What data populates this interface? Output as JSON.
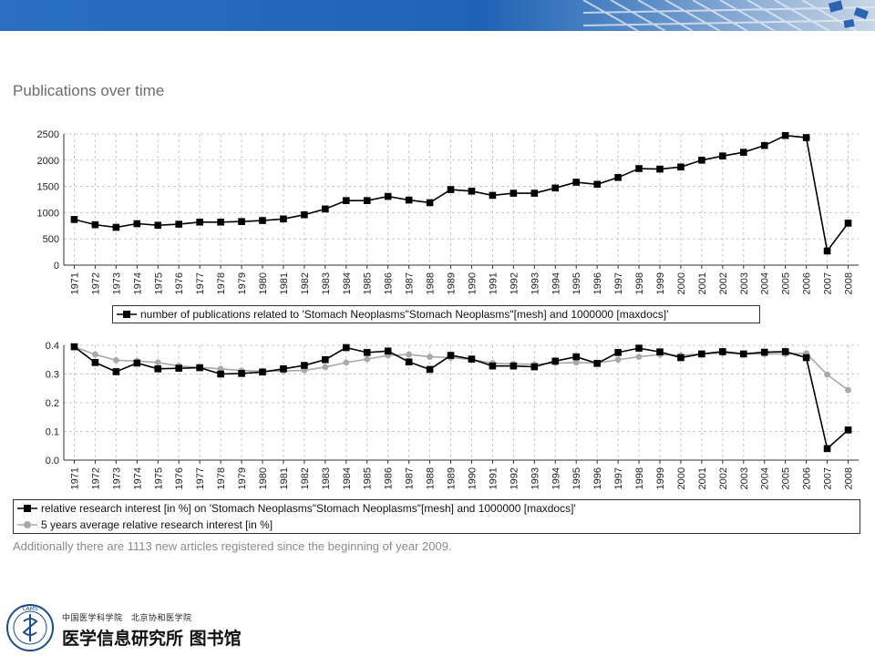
{
  "page": {
    "title": "Publications over time",
    "note": "Additionally there are 1113 new articles registered since the beginning of year 2009.",
    "footer_org": "中国医学科学院　北京协和医学院",
    "footer_name": "医学信息研究所 图书馆",
    "logo_text": "CAMS"
  },
  "colors": {
    "banner": "#1f63b5",
    "series_black": "#000000",
    "series_gray": "#a9a9a9",
    "grid": "#c8c8c8"
  },
  "chart_data": [
    {
      "type": "line",
      "x": [
        "1971",
        "1972",
        "1973",
        "1974",
        "1975",
        "1976",
        "1977",
        "1978",
        "1979",
        "1980",
        "1981",
        "1982",
        "1983",
        "1984",
        "1985",
        "1986",
        "1987",
        "1988",
        "1989",
        "1990",
        "1991",
        "1992",
        "1993",
        "1994",
        "1995",
        "1996",
        "1997",
        "1998",
        "1999",
        "2000",
        "2001",
        "2002",
        "2003",
        "2004",
        "2005",
        "2006",
        "2007",
        "2008"
      ],
      "ylim": [
        0,
        2500
      ],
      "yticks": [
        "0",
        "500",
        "1000",
        "1500",
        "2000",
        "2500"
      ],
      "grid": true,
      "legend_position": "bottom",
      "series": [
        {
          "name": "number of publications related to 'Stomach Neoplasms\"Stomach Neoplasms\"[mesh]  and 1000000 [maxdocs]'",
          "marker": "square",
          "values": [
            870,
            770,
            720,
            790,
            760,
            780,
            820,
            820,
            830,
            850,
            880,
            960,
            1070,
            1230,
            1230,
            1310,
            1240,
            1190,
            1440,
            1410,
            1330,
            1370,
            1370,
            1470,
            1580,
            1540,
            1670,
            1840,
            1830,
            1870,
            2000,
            2080,
            2150,
            2280,
            2470,
            2430,
            270,
            800
          ]
        }
      ]
    },
    {
      "type": "line",
      "x": [
        "1971",
        "1972",
        "1973",
        "1974",
        "1975",
        "1976",
        "1977",
        "1978",
        "1979",
        "1980",
        "1981",
        "1982",
        "1983",
        "1984",
        "1985",
        "1986",
        "1987",
        "1988",
        "1989",
        "1990",
        "1991",
        "1992",
        "1993",
        "1994",
        "1995",
        "1996",
        "1997",
        "1998",
        "1999",
        "2000",
        "2001",
        "2002",
        "2003",
        "2004",
        "2005",
        "2006",
        "2007",
        "2008"
      ],
      "ylim": [
        0,
        0.4
      ],
      "yticks": [
        "0.0",
        "0.1",
        "0.2",
        "0.3",
        "0.4"
      ],
      "grid": true,
      "legend_position": "bottom",
      "series": [
        {
          "name": "relative research interest [in %] on 'Stomach Neoplasms\"Stomach Neoplasms\"[mesh]  and 1000000 [maxdocs]'",
          "marker": "square",
          "values": [
            0.395,
            0.34,
            0.308,
            0.338,
            0.318,
            0.32,
            0.322,
            0.3,
            0.302,
            0.307,
            0.318,
            0.33,
            0.35,
            0.392,
            0.375,
            0.38,
            0.342,
            0.316,
            0.365,
            0.352,
            0.328,
            0.328,
            0.325,
            0.345,
            0.36,
            0.337,
            0.375,
            0.39,
            0.377,
            0.357,
            0.37,
            0.378,
            0.37,
            0.376,
            0.378,
            0.357,
            0.04,
            0.105
          ]
        },
        {
          "name": "5 years average relative research interest [in %]",
          "marker": "circle",
          "values": [
            0.395,
            0.368,
            0.348,
            0.345,
            0.34,
            0.328,
            0.323,
            0.318,
            0.312,
            0.31,
            0.31,
            0.313,
            0.324,
            0.34,
            0.352,
            0.365,
            0.368,
            0.36,
            0.357,
            0.35,
            0.338,
            0.335,
            0.334,
            0.338,
            0.34,
            0.338,
            0.35,
            0.36,
            0.368,
            0.365,
            0.37,
            0.373,
            0.37,
            0.37,
            0.37,
            0.372,
            0.298,
            0.244
          ]
        }
      ]
    }
  ]
}
